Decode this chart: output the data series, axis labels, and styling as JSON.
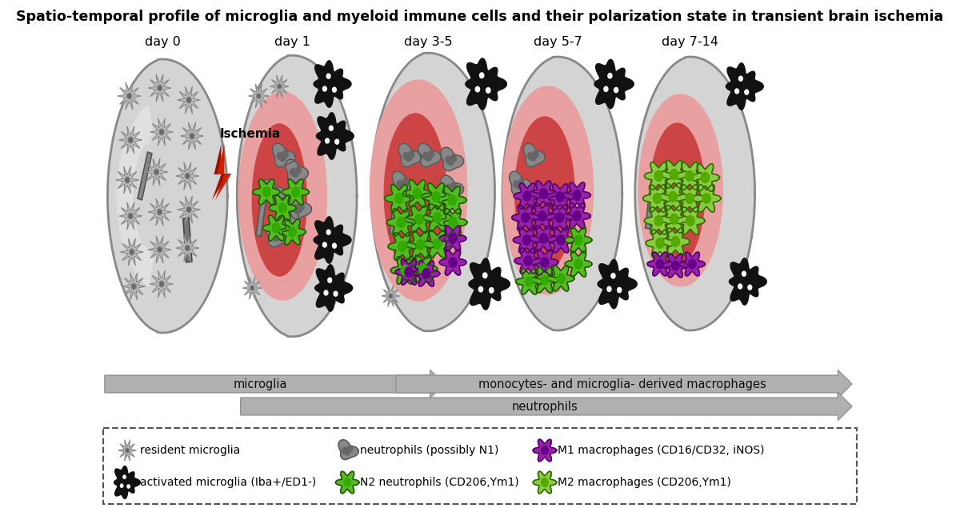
{
  "title": "Spatio-temporal profile of microglia and myeloid immune cells and their polarization state in transient brain ischemia",
  "title_fontsize": 12.5,
  "day_labels": [
    "day 0",
    "day 1",
    "day 3-5",
    "day 5-7",
    "day 7-14"
  ],
  "arrow1_label": "microglia",
  "arrow2_label": "monocytes- and microglia- derived macrophages",
  "arrow3_label": "neutrophils",
  "colors": {
    "brain_fill": "#d4d4d4",
    "brain_edge": "#888888",
    "inner_lighter": "#e8e8e8",
    "infarct_pink": "#e8a0a0",
    "infarct_red": "#cc4444",
    "bg": "#ffffff",
    "arrow_fill": "#aaaaaa",
    "arrow_edge": "#888888",
    "resident_microglia_fill": "#bbbbbb",
    "resident_microglia_edge": "#777777",
    "activated_microglia_fill": "#111111",
    "neutrophil_fill": "#888888",
    "neutrophil_edge": "#555555",
    "n2_fill": "#55bb22",
    "n2_edge": "#225500",
    "m1_fill": "#9922aa",
    "m1_edge": "#550066",
    "m2_fill": "#88cc44",
    "m2_edge": "#336600",
    "ischemia_red": "#cc2200",
    "ischemia_dark": "#991100",
    "vessel_fill": "#cccccc",
    "vessel_edge": "#666666"
  }
}
